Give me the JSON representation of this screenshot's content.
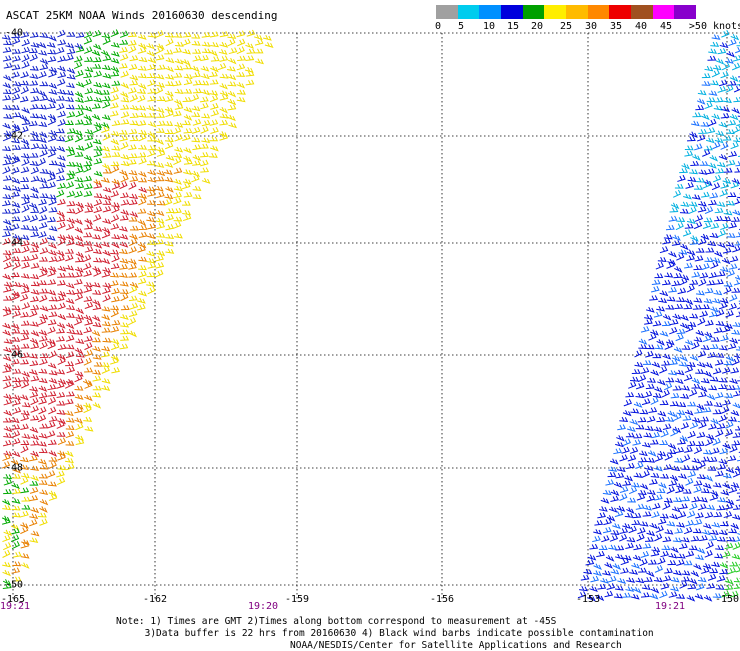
{
  "title": "ASCAT 25KM NOAA Winds 20160630 descending",
  "legend": {
    "labels": [
      "0",
      "5",
      "10",
      "15",
      "20",
      "25",
      "30",
      "35",
      "40",
      "45",
      ">50 knots"
    ],
    "colors": [
      "#a0a0a0",
      "#00ccee",
      "#0090ff",
      "#0000dd",
      "#00a000",
      "#ffee00",
      "#ffbb00",
      "#ff8800",
      "#ee0000",
      "#a05020",
      "#ff00ff",
      "#8800cc"
    ]
  },
  "latitude_labels": [
    "-40",
    "-42",
    "-44",
    "-46",
    "-48",
    "-50"
  ],
  "longitude_labels": [
    "-165",
    "-162",
    "-159",
    "-156",
    "-153",
    "-150"
  ],
  "pass_times": [
    "19:21",
    "19:20",
    "19:21"
  ],
  "notes": {
    "line1": "Note: 1) Times are GMT 2)Times along bottom correspond to measurement at -45S",
    "line2": "     3)Data buffer is 22 hrs from 20160630 4) Black wind barbs indicate possible contamination",
    "credit": "NOAA/NESDIS/Center for Satellite Applications and Research"
  }
}
